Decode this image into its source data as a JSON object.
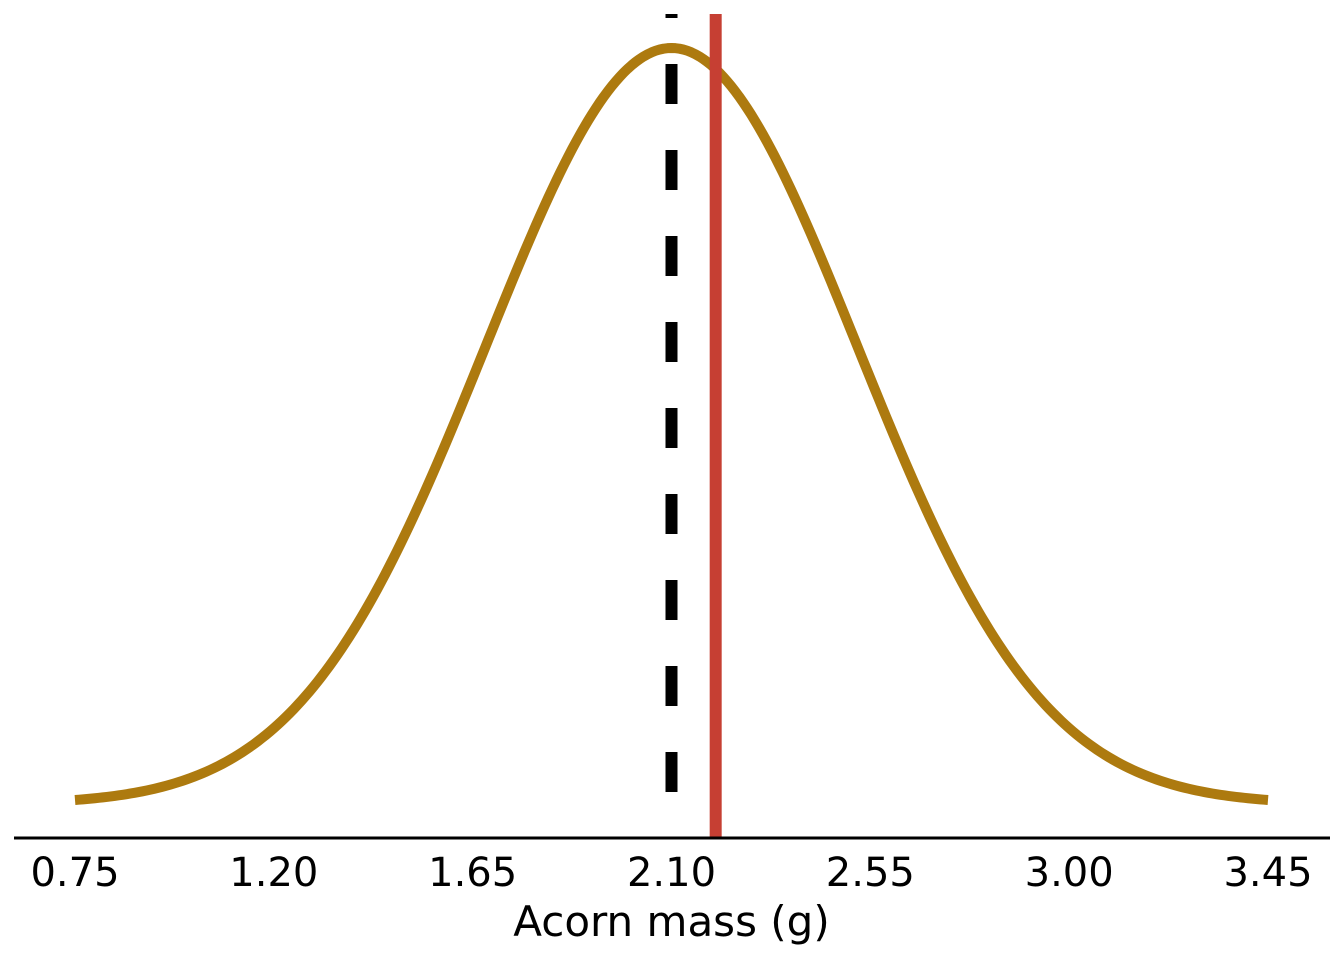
{
  "chart_data": {
    "type": "line",
    "xlabel": "Acorn mass (g)",
    "ylabel": "",
    "title": "",
    "xlim": [
      0.75,
      3.45
    ],
    "x_ticks": [
      "0.75",
      "1.20",
      "1.65",
      "2.10",
      "2.55",
      "3.00",
      "3.45"
    ],
    "grid": false,
    "series": [
      {
        "kind": "normal-density-curve",
        "mean": 2.1,
        "sd": 0.42,
        "x_range": [
          0.75,
          3.45
        ],
        "color": "#AD7A0F"
      }
    ],
    "reference_lines": [
      {
        "style": "dashed",
        "x": 2.1,
        "color": "#000000"
      },
      {
        "style": "solid",
        "x": 2.2,
        "color": "#C63F33"
      }
    ],
    "y_axis_shown": false
  }
}
